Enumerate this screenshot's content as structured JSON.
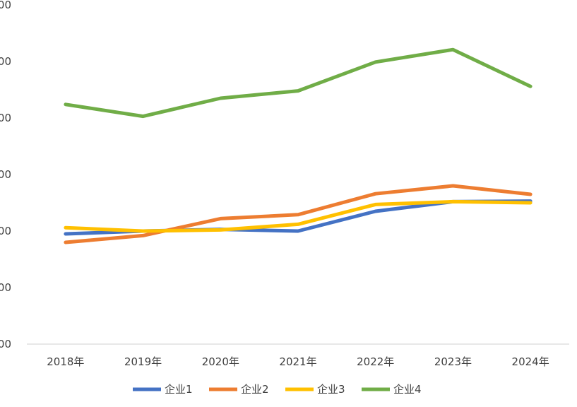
{
  "chart_data": {
    "type": "line",
    "categories": [
      "2018年",
      "2019年",
      "2020年",
      "2021年",
      "2022年",
      "2023年",
      "2024年"
    ],
    "y_tick_labels": [
      "00",
      "00",
      "00",
      "00",
      "00",
      "00",
      "00"
    ],
    "ylim": [
      0,
      6
    ],
    "grid": false,
    "legend_position": "bottom",
    "series": [
      {
        "name": "企业1",
        "color": "#4472C4",
        "values": [
          1.95,
          2.0,
          2.03,
          2.0,
          2.35,
          2.52,
          2.53
        ]
      },
      {
        "name": "企业2",
        "color": "#ED7D31",
        "values": [
          1.8,
          1.92,
          2.22,
          2.29,
          2.66,
          2.8,
          2.65
        ]
      },
      {
        "name": "企业3",
        "color": "#FFC000",
        "values": [
          2.06,
          2.0,
          2.02,
          2.12,
          2.47,
          2.52,
          2.5
        ]
      },
      {
        "name": "企业4",
        "color": "#70AD47",
        "values": [
          4.24,
          4.03,
          4.35,
          4.48,
          4.99,
          5.21,
          4.56
        ]
      }
    ]
  }
}
